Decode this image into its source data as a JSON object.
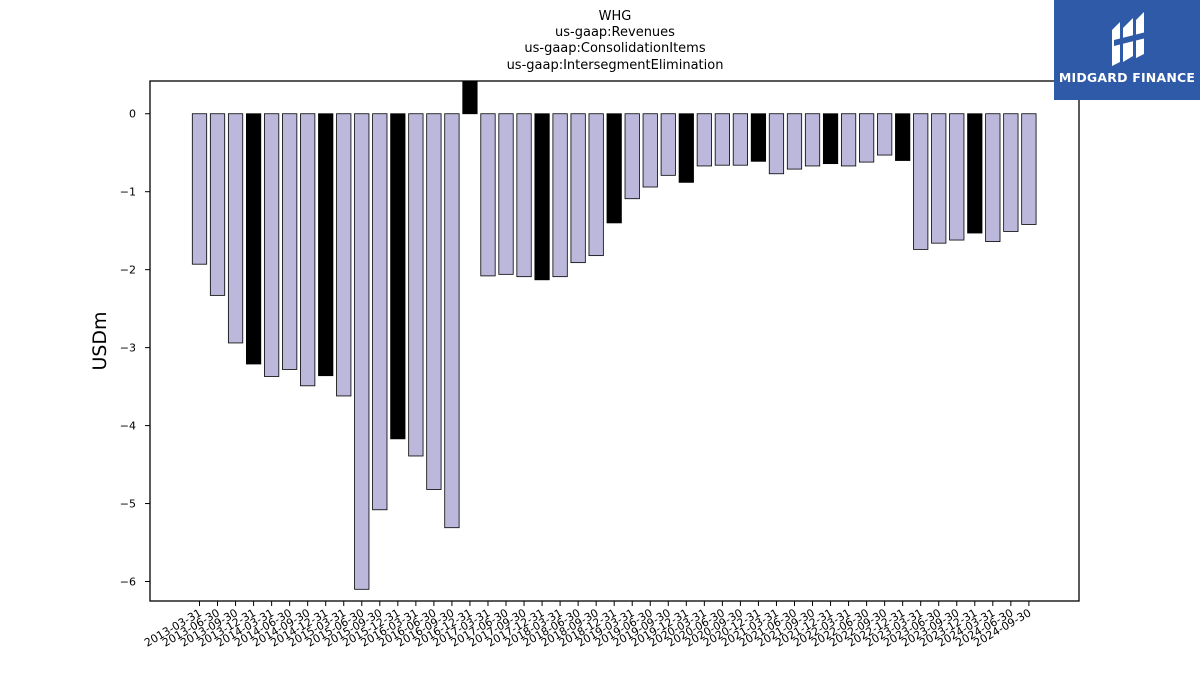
{
  "chart_data": {
    "type": "bar",
    "title_lines": [
      "WHG",
      "us-gaap:Revenues",
      "us-gaap:ConsolidationItems",
      "us-gaap:IntersegmentElimination"
    ],
    "ylabel": "USDm",
    "xlabel": "",
    "ylim": [
      -6.25,
      0.42
    ],
    "yticks": [
      0,
      -1,
      -2,
      -3,
      -4,
      -5,
      -6
    ],
    "ytick_labels": [
      "0",
      "−1",
      "−2",
      "−3",
      "−4",
      "−5",
      "−6"
    ],
    "grid": false,
    "colors": {
      "quarter": "#bcb8dc",
      "year_end": "#000000",
      "edge": "#000000"
    },
    "categories": [
      "2013-03-31",
      "2013-06-30",
      "2013-09-30",
      "2013-12-31",
      "2014-03-31",
      "2014-06-30",
      "2014-09-30",
      "2014-12-31",
      "2015-03-31",
      "2015-06-30",
      "2015-09-30",
      "2015-12-31",
      "2016-03-31",
      "2016-06-30",
      "2016-09-30",
      "2016-12-31",
      "2017-03-31",
      "2017-06-30",
      "2017-09-30",
      "2017-12-31",
      "2018-03-31",
      "2018-06-30",
      "2018-09-30",
      "2018-12-31",
      "2019-03-31",
      "2019-06-30",
      "2019-09-30",
      "2019-12-31",
      "2020-03-31",
      "2020-06-30",
      "2020-09-30",
      "2020-12-31",
      "2021-03-31",
      "2021-06-30",
      "2021-09-30",
      "2021-12-31",
      "2022-03-31",
      "2022-06-30",
      "2022-09-30",
      "2022-12-31",
      "2023-03-31",
      "2023-06-30",
      "2023-09-30",
      "2023-12-31",
      "2024-03-31",
      "2024-06-30",
      "2024-09-30"
    ],
    "values": [
      -1.93,
      -2.33,
      -2.94,
      -3.21,
      -3.37,
      -3.28,
      -3.49,
      -3.36,
      -3.62,
      -6.1,
      -5.08,
      -4.17,
      -4.39,
      -4.82,
      -5.31,
      0.42,
      -2.08,
      -2.06,
      -2.09,
      -2.13,
      -2.09,
      -1.91,
      -1.82,
      -1.4,
      -1.09,
      -0.94,
      -0.79,
      -0.88,
      -0.67,
      -0.66,
      -0.66,
      -0.61,
      -0.77,
      -0.71,
      -0.67,
      -0.64,
      -0.67,
      -0.62,
      -0.53,
      -0.6,
      -1.74,
      -1.66,
      -1.62,
      -1.53,
      -1.64,
      -1.51,
      -1.42
    ],
    "highlight": [
      false,
      false,
      false,
      true,
      false,
      false,
      false,
      true,
      false,
      false,
      false,
      true,
      false,
      false,
      false,
      true,
      false,
      false,
      false,
      true,
      false,
      false,
      false,
      true,
      false,
      false,
      false,
      true,
      false,
      false,
      false,
      true,
      false,
      false,
      false,
      true,
      false,
      false,
      false,
      true,
      false,
      false,
      false,
      true,
      false,
      false,
      false
    ]
  },
  "logo": {
    "text": "MIDGARD FINANCE",
    "icon": "midgard-logo-icon",
    "background": "#2f5aa8"
  }
}
